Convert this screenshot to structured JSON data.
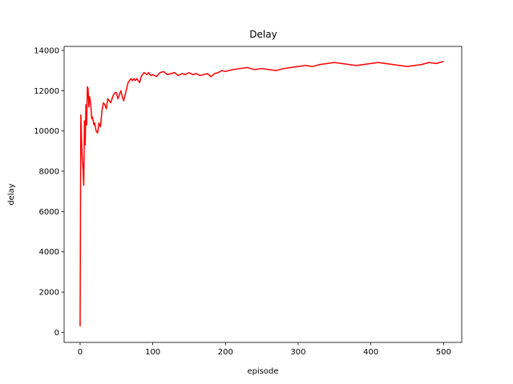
{
  "chart_data": {
    "type": "line",
    "title": "Delay",
    "xlabel": "episode",
    "ylabel": "delay",
    "xlim": [
      -22,
      525
    ],
    "ylim": [
      -500,
      14200
    ],
    "xticks": [
      0,
      100,
      200,
      300,
      400,
      500
    ],
    "yticks": [
      0,
      2000,
      4000,
      6000,
      8000,
      10000,
      12000,
      14000
    ],
    "grid": false,
    "legend": "none",
    "series": [
      {
        "color": "#ff0000",
        "x": [
          0,
          1,
          2,
          3,
          4,
          5,
          6,
          7,
          8,
          9,
          10,
          11,
          12,
          13,
          14,
          15,
          16,
          17,
          18,
          19,
          20,
          22,
          24,
          26,
          28,
          30,
          32,
          34,
          36,
          38,
          40,
          42,
          44,
          46,
          48,
          50,
          52,
          54,
          56,
          58,
          60,
          62,
          64,
          66,
          68,
          70,
          72,
          74,
          76,
          78,
          80,
          82,
          84,
          86,
          88,
          90,
          92,
          94,
          96,
          98,
          100,
          105,
          110,
          115,
          120,
          125,
          130,
          135,
          140,
          145,
          150,
          155,
          160,
          165,
          170,
          175,
          180,
          185,
          190,
          195,
          200,
          210,
          220,
          230,
          240,
          250,
          260,
          270,
          280,
          290,
          300,
          310,
          320,
          330,
          340,
          350,
          360,
          370,
          380,
          390,
          400,
          410,
          420,
          430,
          440,
          450,
          460,
          470,
          480,
          490,
          500
        ],
        "y": [
          300,
          10800,
          9500,
          8600,
          8100,
          7300,
          10500,
          9300,
          11300,
          10300,
          12200,
          12100,
          11200,
          11700,
          11500,
          11100,
          10600,
          10700,
          10500,
          10300,
          10400,
          10000,
          9900,
          10400,
          10200,
          11000,
          11400,
          11300,
          11100,
          11600,
          11500,
          11400,
          11600,
          11800,
          11900,
          11900,
          11600,
          11800,
          12000,
          11700,
          11500,
          11800,
          12100,
          12400,
          12500,
          12600,
          12500,
          12600,
          12500,
          12600,
          12500,
          12400,
          12700,
          12800,
          12900,
          12850,
          12800,
          12900,
          12800,
          12750,
          12800,
          12700,
          12900,
          12950,
          12800,
          12850,
          12900,
          12750,
          12850,
          12800,
          12900,
          12800,
          12850,
          12750,
          12800,
          12850,
          12700,
          12850,
          12900,
          13000,
          12950,
          13050,
          13100,
          13150,
          13050,
          13100,
          13050,
          13000,
          13100,
          13150,
          13200,
          13250,
          13200,
          13300,
          13350,
          13400,
          13350,
          13300,
          13250,
          13300,
          13350,
          13400,
          13350,
          13300,
          13250,
          13200,
          13250,
          13300,
          13400,
          13350,
          13450
        ]
      }
    ]
  }
}
